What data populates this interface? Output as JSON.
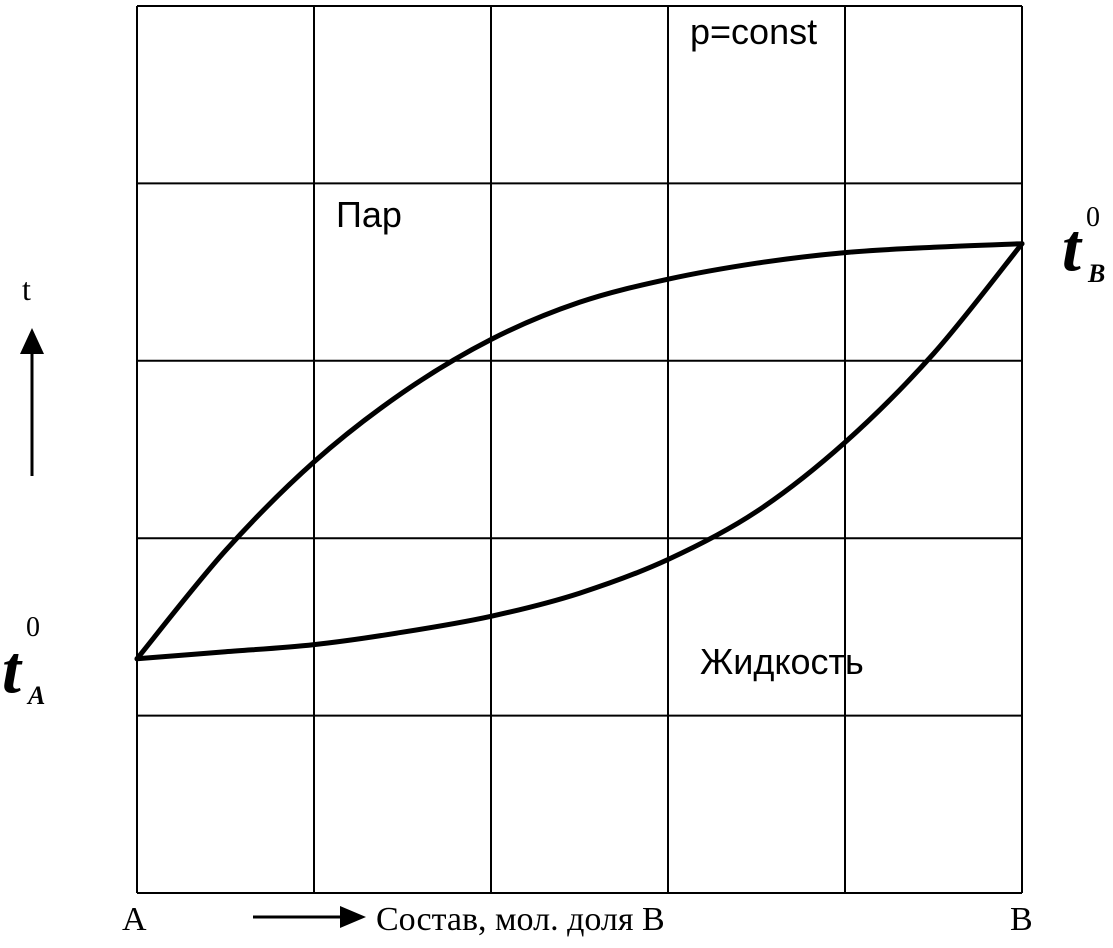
{
  "chart_data": {
    "type": "line",
    "title": "",
    "pressure_note": "p=const",
    "x_axis": {
      "label": "Состав, мол. доля B",
      "left_end": "A",
      "right_end": "B",
      "range": [
        0,
        1
      ],
      "divisions": 5
    },
    "y_axis": {
      "label": "t",
      "range": [
        0,
        5
      ],
      "divisions": 5
    },
    "grid": true,
    "regions": {
      "vapor": "Пар",
      "liquid": "Жидкость"
    },
    "boiling_points": {
      "A": {
        "symbol": "t",
        "superscript": "0",
        "subscript": "A",
        "value": 1.32
      },
      "B": {
        "symbol": "t",
        "superscript": "0",
        "subscript": "B",
        "value": 3.66
      }
    },
    "series": [
      {
        "id": "vapor-curve",
        "x": [
          0,
          0.1,
          0.2,
          0.3,
          0.4,
          0.5,
          0.6,
          0.7,
          0.8,
          0.9,
          1.0
        ],
        "y": [
          1.32,
          1.93,
          2.43,
          2.82,
          3.12,
          3.33,
          3.46,
          3.55,
          3.61,
          3.64,
          3.66
        ]
      },
      {
        "id": "liquid-curve",
        "x": [
          0,
          0.1,
          0.2,
          0.3,
          0.4,
          0.5,
          0.6,
          0.7,
          0.8,
          0.9,
          1.0
        ],
        "y": [
          1.32,
          1.36,
          1.4,
          1.47,
          1.56,
          1.69,
          1.88,
          2.15,
          2.54,
          3.04,
          3.66
        ]
      }
    ]
  }
}
